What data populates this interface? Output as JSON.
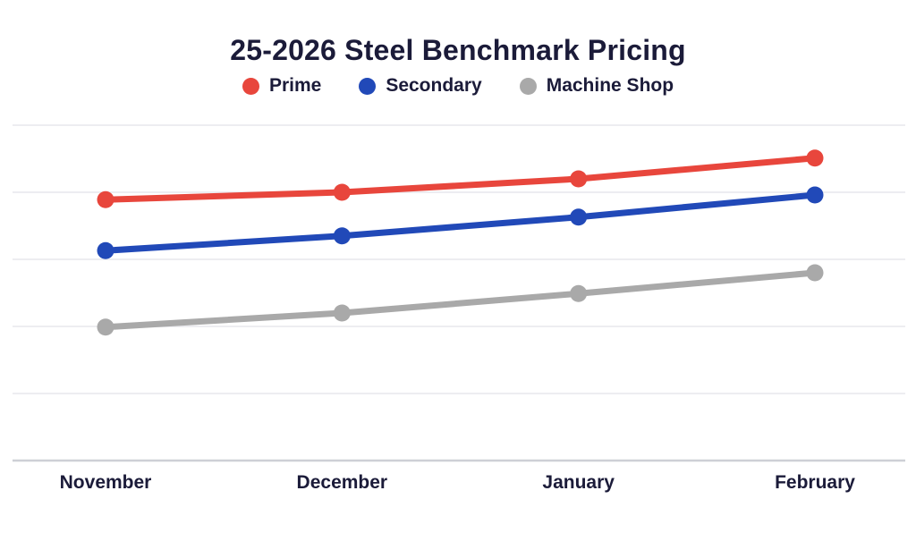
{
  "header": {
    "title": "25-2026 Steel Benchmark Pricing"
  },
  "colors": {
    "background": "#ffffff",
    "title_text": "#1b1b39",
    "axis_label_text": "#1b1b39",
    "gridline": "#ededf1",
    "axis_line": "#ced0d6",
    "prime": "#e8463c",
    "secondary": "#2149b8",
    "machine_shop": "#a9a9a9"
  },
  "chart_data": {
    "type": "line",
    "title": "25-2026 Steel Benchmark Pricing",
    "categories": [
      "November",
      "December",
      "January",
      "February"
    ],
    "series": [
      {
        "name": "Prime",
        "color": "#e8463c",
        "values": [
          3.89,
          4.0,
          4.2,
          4.51
        ]
      },
      {
        "name": "Secondary",
        "color": "#2149b8",
        "values": [
          3.13,
          3.35,
          3.63,
          3.96
        ]
      },
      {
        "name": "Machine Shop",
        "color": "#a9a9a9",
        "values": [
          1.99,
          2.2,
          2.49,
          2.8
        ]
      }
    ],
    "xlabel": "",
    "ylabel": "",
    "ylim": [
      0,
      5
    ],
    "y_unit": "relative gridline units (no y-axis tick labels shown)",
    "y_ticks_shown": false,
    "grid": "horizontal",
    "marker": "circle",
    "legend_position": "top-center"
  }
}
